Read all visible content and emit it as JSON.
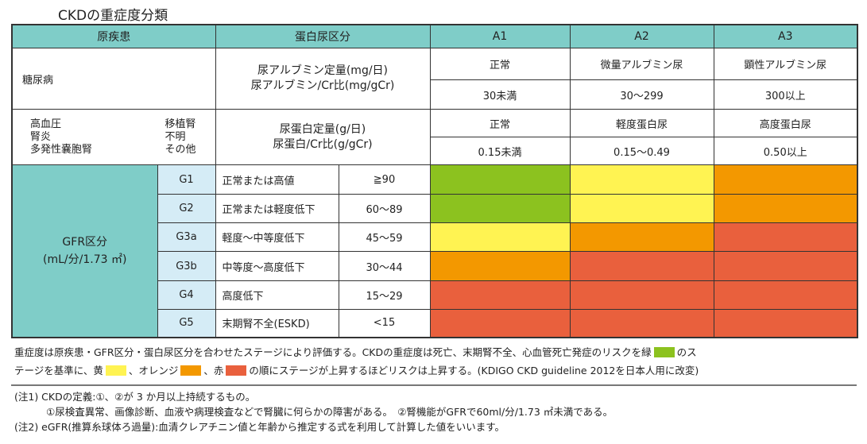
{
  "title": "CKDの重症度分類",
  "header": {
    "disease": "原疾患",
    "proteinuria": "蛋白尿区分",
    "a1": "A1",
    "a2": "A2",
    "a3": "A3"
  },
  "diabetes": {
    "disease": "糖尿病",
    "measure1": "尿アルブミン定量(mg/日)",
    "measure2": "尿アルブミン/Cr比(mg/gCr)",
    "a1_label": "正常",
    "a2_label": "微量アルブミン尿",
    "a3_label": "顕性アルブミン尿",
    "a1_value": "30未満",
    "a2_value": "30〜299",
    "a3_value": "300以上"
  },
  "other": {
    "col1": [
      "高血圧",
      "腎炎",
      "多発性嚢胞腎"
    ],
    "col2": [
      "移植腎",
      "不明",
      "その他"
    ],
    "measure1": "尿蛋白定量(g/日)",
    "measure2": "尿蛋白/Cr比(g/gCr)",
    "a1_label": "正常",
    "a2_label": "軽度蛋白尿",
    "a3_label": "高度蛋白尿",
    "a1_value": "0.15未満",
    "a2_value": "0.15〜0.49",
    "a3_value": "0.50以上"
  },
  "gfr": {
    "label1": "GFR区分",
    "label2": "(mL/分/1.73 ㎡)",
    "rows": [
      {
        "stage": "G1",
        "desc": "正常または高値",
        "range": "≧90",
        "risk": [
          "green",
          "yellow",
          "orange"
        ]
      },
      {
        "stage": "G2",
        "desc": "正常または軽度低下",
        "range": "60〜89",
        "risk": [
          "green",
          "yellow",
          "orange"
        ]
      },
      {
        "stage": "G3a",
        "desc": "軽度〜中等度低下",
        "range": "45〜59",
        "risk": [
          "yellow",
          "orange",
          "red"
        ]
      },
      {
        "stage": "G3b",
        "desc": "中等度〜高度低下",
        "range": "30〜44",
        "risk": [
          "orange",
          "red",
          "red"
        ]
      },
      {
        "stage": "G4",
        "desc": "高度低下",
        "range": "15〜29",
        "risk": [
          "red",
          "red",
          "red"
        ]
      },
      {
        "stage": "G5",
        "desc": "末期腎不全(ESKD)",
        "range": "<15",
        "risk": [
          "red",
          "red",
          "red"
        ]
      }
    ]
  },
  "colors": {
    "green": "#8cc21f",
    "yellow": "#fff352",
    "orange": "#f39800",
    "red": "#e9603d"
  },
  "legend": {
    "line1a": "重症度は原疾患・GFR区分・蛋白尿区分を合わせたステージにより評価する。CKDの重症度は死亡、末期腎不全、心血管死亡発症のリスクを緑",
    "line1b": "のス",
    "line2a": "テージを基準に、黄",
    "line2b": "、オレンジ",
    "line2c": "、赤",
    "line2d": "の順にステージが上昇するほどリスクは上昇する。(KDIGO CKD guideline 2012を日本人用に改変)"
  },
  "notes": [
    "(注1) CKDの定義:①、②が 3 か月以上持続するもの。",
    "①尿検査異常、画像診断、血液や病理検査などで腎臓に何らかの障害がある。　②腎機能がGFRで60ml/分/1.73 ㎡未満である。",
    "(注2) eGFR(推算糸球体ろ過量):血清クレアチニン値と年齢から推定する式を利用して計算した値をいいます。"
  ]
}
